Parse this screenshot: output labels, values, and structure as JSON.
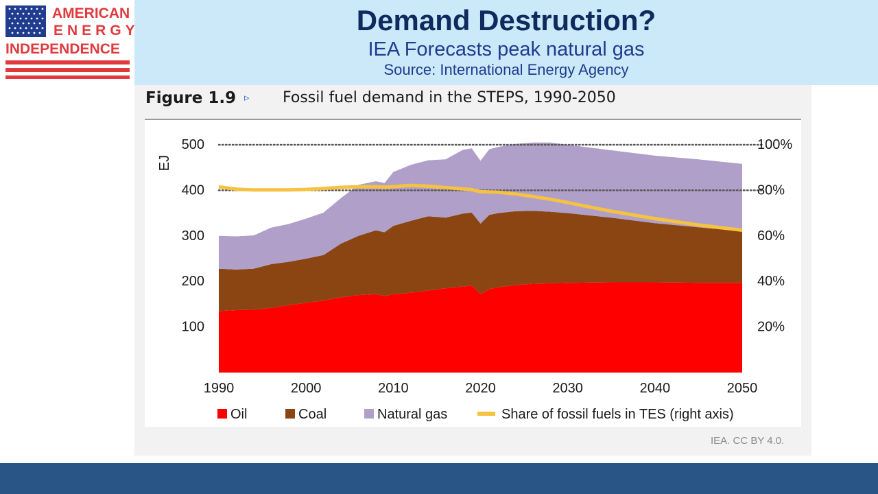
{
  "logo": {
    "line1": "AMERICAN",
    "line2": "ENERGY",
    "line3": "INDEPENDENCE"
  },
  "header": {
    "title": "Demand Destruction?",
    "subtitle": "IEA Forecasts peak natural gas",
    "source": "Source: International Energy Agency"
  },
  "figure": {
    "label": "Figure 1.9",
    "arrow": "▹",
    "title": "Fossil fuel demand in the STEPS, 1990-2050"
  },
  "credit": "IEA. CC BY 4.0.",
  "colors": {
    "oil": "#ff0000",
    "coal": "#8b4513",
    "gas": "#b09fc8",
    "share": "#f5c242",
    "header_bg": "#cce9fa",
    "footer_bg": "#285585"
  },
  "chart_data": {
    "type": "area",
    "title": "Fossil fuel demand in the STEPS, 1990-2050",
    "ylabel": "EJ",
    "ylim": [
      0,
      500
    ],
    "y2lim": [
      0,
      100
    ],
    "y_ticks": [
      100,
      200,
      300,
      400,
      500
    ],
    "y_tick_labels": [
      "100",
      "200",
      "300",
      "400",
      "500"
    ],
    "y2_ticks": [
      20,
      40,
      60,
      80,
      100
    ],
    "y2_tick_labels": [
      "20%",
      "40%",
      "60%",
      "80%",
      "100%"
    ],
    "x_ticks": [
      1990,
      2000,
      2010,
      2020,
      2030,
      2040,
      2050
    ],
    "x_tick_labels": [
      "1990",
      "2000",
      "2010",
      "2020",
      "2030",
      "2040",
      "2050"
    ],
    "xlim": [
      1990,
      2050
    ],
    "x": [
      1990,
      1992,
      1994,
      1996,
      1998,
      2000,
      2002,
      2004,
      2006,
      2008,
      2009,
      2010,
      2012,
      2014,
      2016,
      2018,
      2019,
      2020,
      2021,
      2022,
      2024,
      2026,
      2028,
      2030,
      2035,
      2040,
      2045,
      2050
    ],
    "series": [
      {
        "name": "Oil",
        "kind": "stack",
        "values": [
          135,
          137,
          138,
          142,
          148,
          153,
          158,
          165,
          170,
          172,
          168,
          172,
          175,
          180,
          185,
          189,
          191,
          172,
          183,
          187,
          192,
          195,
          196,
          197,
          198,
          198,
          197,
          197
        ]
      },
      {
        "name": "Coal",
        "kind": "stack",
        "values": [
          93,
          89,
          90,
          96,
          95,
          97,
          100,
          118,
          130,
          140,
          140,
          150,
          158,
          163,
          155,
          160,
          160,
          155,
          163,
          163,
          162,
          160,
          157,
          153,
          142,
          130,
          122,
          113
        ]
      },
      {
        "name": "Natural gas",
        "kind": "stack",
        "values": [
          72,
          73,
          73,
          80,
          83,
          88,
          93,
          100,
          112,
          108,
          108,
          118,
          123,
          123,
          128,
          140,
          141,
          138,
          144,
          145,
          148,
          150,
          152,
          150,
          148,
          148,
          149,
          148
        ]
      },
      {
        "name": "Share of fossil fuels in TES (right axis)",
        "kind": "line",
        "axis": "right",
        "values": [
          81.5,
          80.5,
          80.2,
          80.2,
          80.2,
          80.4,
          80.8,
          81.3,
          81.6,
          81.6,
          81.4,
          81.6,
          82.2,
          81.8,
          81.2,
          80.6,
          80.3,
          79.4,
          79.3,
          79.2,
          78.4,
          77.3,
          76.1,
          74.6,
          70.8,
          67.6,
          64.8,
          62.5
        ]
      }
    ],
    "reference_lines_pct": [
      80,
      100
    ],
    "legend": [
      "Oil",
      "Coal",
      "Natural gas",
      "Share of fossil fuels in TES (right axis)"
    ],
    "legend_position": "bottom"
  }
}
